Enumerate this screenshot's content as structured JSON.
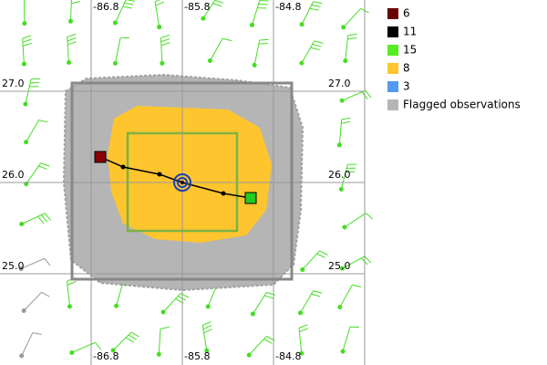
{
  "map": {
    "lon_labels_top": [
      "-86.8",
      "-85.8",
      "-84.8"
    ],
    "lon_labels_bottom": [
      "-86.8",
      "-85.8",
      "-84.8"
    ],
    "lat_labels_left": [
      "27.0",
      "26.0",
      "25.0"
    ],
    "lat_labels_right": [
      "27.0",
      "26.0",
      "25.0"
    ]
  },
  "legend": {
    "items": [
      "6",
      "11",
      "15",
      "8",
      "3",
      "Flagged observations"
    ]
  }
}
